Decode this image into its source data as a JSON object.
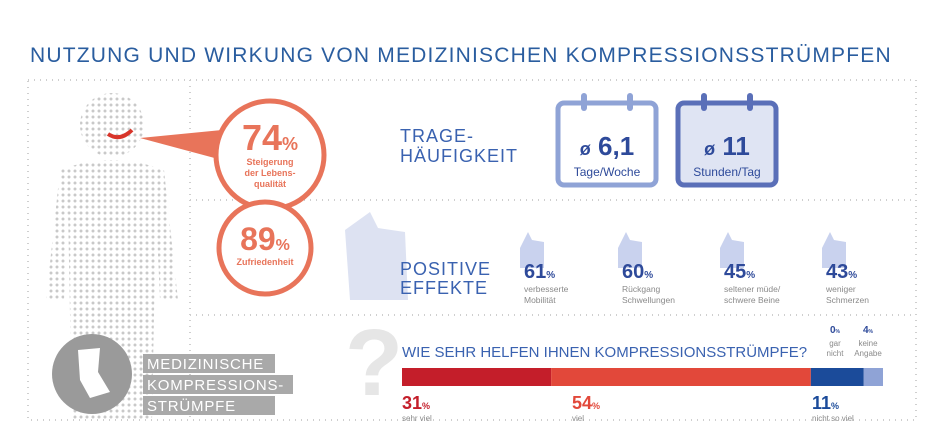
{
  "title": "NUTZUNG UND WIRKUNG VON MEDIZINISCHEN KOMPRESSIONSSTRÜMPFEN",
  "stats": [
    {
      "value": 74,
      "unit": "%",
      "label": [
        "Steigerung",
        "der Lebens-",
        "qualität"
      ]
    },
    {
      "value": 89,
      "unit": "%",
      "label": [
        "Zufriedenheit"
      ]
    }
  ],
  "frequency": {
    "heading": [
      "TRAGE-",
      "HÄUFIGKEIT"
    ],
    "items": [
      {
        "prefix": "ø",
        "value": "6,1",
        "label": "Tage/Woche"
      },
      {
        "prefix": "ø",
        "value": 11,
        "label": "Stunden/Tag"
      }
    ]
  },
  "effects": {
    "heading": [
      "POSITIVE",
      "EFFEKTE"
    ],
    "items": [
      {
        "value": 61,
        "unit": "%",
        "label": [
          "verbesserte",
          "Mobilität"
        ]
      },
      {
        "value": 60,
        "unit": "%",
        "label": [
          "Rückgang",
          "Schwellungen"
        ]
      },
      {
        "value": 45,
        "unit": "%",
        "label": [
          "seltener müde/",
          "schwere Beine"
        ]
      },
      {
        "value": 43,
        "unit": "%",
        "label": [
          "weniger",
          "Schmerzen"
        ]
      }
    ]
  },
  "question": {
    "text": "WIE SEHR HELFEN IHNEN KOMPRESSIONSSTRÜMPFE?",
    "answers": [
      {
        "value": 31,
        "unit": "%",
        "label": [
          "sehr viel"
        ],
        "color": "#c41e2a"
      },
      {
        "value": 54,
        "unit": "%",
        "label": [
          "viel"
        ],
        "color": "#e2483a"
      },
      {
        "value": 11,
        "unit": "%",
        "label": [
          "nicht so viel"
        ],
        "color": "#1b4b9a"
      },
      {
        "value": 0,
        "unit": "%",
        "label": [
          "gar",
          "nicht"
        ],
        "color": "#3a4fa8"
      },
      {
        "value": 4,
        "unit": "%",
        "label": [
          "keine",
          "Angabe"
        ],
        "color": "#8fa3d6"
      }
    ]
  },
  "product": {
    "lines": [
      "MEDIZINISCHE",
      "KOMPRESSIONS-",
      "STRÜMPFE"
    ]
  }
}
